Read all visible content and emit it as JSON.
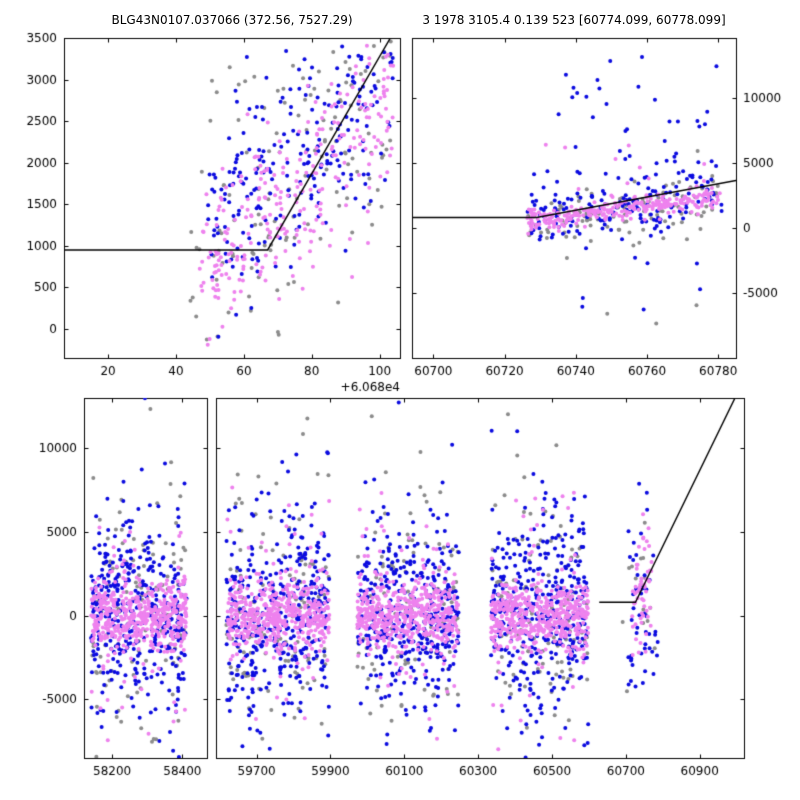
{
  "chart_data": {
    "type": "scatter",
    "description": "Microlensing photometry light curve with model fit line; three telescope point series",
    "series_colors": {
      "blue": "#0b0be0",
      "violet": "#ee82ee",
      "gray": "#8c8c8c",
      "fit_line": "#000000"
    },
    "marker_radius": 2,
    "panels": [
      {
        "id": "top-left",
        "title": "BLG43N0107.037066 (372.56, 7527.29)",
        "xlim": [
          7,
          106
        ],
        "ylim": [
          -350,
          3500
        ],
        "xticks": [
          20,
          40,
          60,
          80,
          100
        ],
        "yticks": [
          0,
          500,
          1000,
          1500,
          2000,
          2500,
          3000,
          3500
        ],
        "ytick_side": "left",
        "x_offset_label": "+6.068e4",
        "fit_line": [
          [
            7,
            950
          ],
          [
            67,
            950
          ],
          [
            104,
            3560
          ]
        ],
        "clusters": [
          {
            "color": "gray",
            "n": 130,
            "x": [
              44,
              104
            ],
            "y_trend": [
              850,
              2750
            ],
            "sigma": 800
          },
          {
            "color": "gray",
            "n": 6,
            "x": [
              50,
              100
            ],
            "y_uniform": [
              2800,
              3450
            ]
          },
          {
            "color": "blue",
            "n": 235,
            "x": [
              49,
              104
            ],
            "y_trend": [
              1250,
              2950
            ],
            "sigma": 640
          },
          {
            "color": "violet",
            "n": 270,
            "x": [
              47,
              104
            ],
            "y_trend": [
              800,
              2650
            ],
            "sigma": 500
          }
        ]
      },
      {
        "id": "top-right",
        "title": "3 1978 3105.4 0.139 523 [60774.099, 60778.099]",
        "xlim": [
          60694,
          60785
        ],
        "ylim": [
          -10000,
          14600
        ],
        "xticks": [
          60700,
          60720,
          60740,
          60760,
          60780
        ],
        "yticks": [
          -5000,
          0,
          5000,
          10000
        ],
        "ytick_side": "right",
        "fit_line": [
          [
            60694,
            800
          ],
          [
            60729,
            800
          ],
          [
            60785,
            3650
          ]
        ],
        "clusters": [
          {
            "color": "gray",
            "n": 95,
            "x": [
              60725,
              60781
            ],
            "y_trend": [
              300,
              2200
            ],
            "sigma": 1100
          },
          {
            "color": "gray",
            "n": 10,
            "x": [
              60735,
              60781
            ],
            "mean": 1000,
            "sigma": 4500
          },
          {
            "color": "blue",
            "n": 175,
            "x": [
              60726,
              60781
            ],
            "y_trend": [
              700,
              3100
            ],
            "sigma": 1300
          },
          {
            "color": "blue",
            "n": 30,
            "x": [
              60733,
              60781
            ],
            "y_uniform": [
              3600,
              13200
            ]
          },
          {
            "color": "blue",
            "n": 7,
            "x": [
              60737,
              60779
            ],
            "y_uniform": [
              -6800,
              -1500
            ]
          },
          {
            "color": "violet",
            "n": 255,
            "x": [
              60726,
              60781
            ],
            "y_trend": [
              500,
              2400
            ],
            "sigma": 420
          },
          {
            "color": "violet",
            "n": 12,
            "x": [
              60730,
              60781
            ],
            "y_uniform": [
              3000,
              6500
            ]
          }
        ]
      },
      {
        "id": "bottom",
        "title": "",
        "segments": [
          {
            "xlim": [
              58120,
              58470
            ],
            "xticks": [
              58200,
              58400
            ]
          },
          {
            "xlim": [
              59590,
              61020
            ],
            "xticks": [
              59700,
              59900,
              60100,
              60300,
              60500,
              60700,
              60900
            ]
          }
        ],
        "ylim": [
          -8500,
          13000
        ],
        "yticks": [
          -5000,
          0,
          5000,
          10000
        ],
        "ytick_side": "left",
        "fit_line": [
          [
            60628,
            800
          ],
          [
            60726,
            800
          ],
          [
            61000,
            13200
          ]
        ],
        "bands": [
          [
            58140,
            58412
          ],
          [
            59618,
            59897
          ],
          [
            59972,
            60248
          ],
          [
            60335,
            60598
          ]
        ],
        "band_profile": [
          {
            "color": "gray",
            "n": 110,
            "mean": 0,
            "sigma": 3300
          },
          {
            "color": "gray",
            "n": 20,
            "mean": 0,
            "sigma": 6500
          },
          {
            "color": "blue",
            "n": 330,
            "mean": 200,
            "sigma": 2700
          },
          {
            "color": "blue",
            "n": 55,
            "mean": 200,
            "sigma": 5500
          },
          {
            "color": "violet",
            "n": 430,
            "mean": 0,
            "sigma": 950
          },
          {
            "color": "violet",
            "n": 75,
            "mean": 0,
            "sigma": 3300
          }
        ],
        "clusters": [
          {
            "color": "gray",
            "n": 16,
            "x": [
              60690,
              60788
            ],
            "mean": 500,
            "sigma": 2800
          },
          {
            "color": "blue",
            "n": 42,
            "x": [
              60692,
              60788
            ],
            "mean": 1200,
            "sigma": 3200
          },
          {
            "color": "blue",
            "n": 8,
            "x": [
              60700,
              60785
            ],
            "mean": -2000,
            "sigma": 4000
          },
          {
            "color": "violet",
            "n": 55,
            "x": [
              60715,
              60770
            ],
            "mean": 1900,
            "sigma": 1700
          }
        ]
      }
    ]
  }
}
